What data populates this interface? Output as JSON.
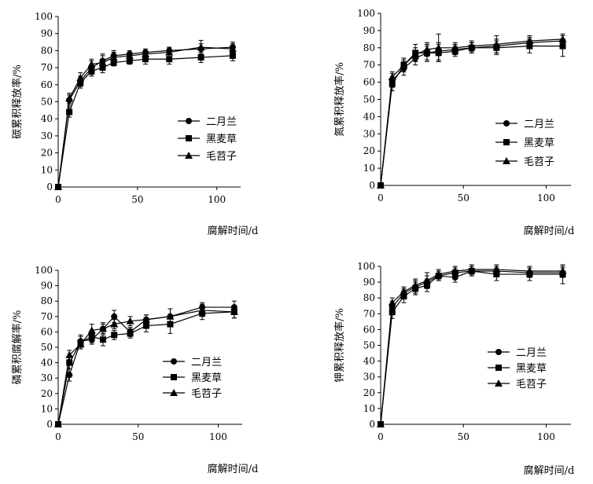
{
  "chart_data": [
    {
      "type": "line",
      "xlabel": "腐解时间/d",
      "ylabel": "碳累积释放率/%",
      "xlim": [
        0,
        115
      ],
      "ylim": [
        0,
        100
      ],
      "xticks": [
        0,
        50,
        100
      ],
      "yticks": [
        0,
        10,
        20,
        30,
        40,
        50,
        60,
        70,
        80,
        90,
        100
      ],
      "legend_position": "center-right",
      "error_bars": true,
      "grid": false,
      "series": [
        {
          "name": "二月兰",
          "marker": "circle",
          "x": [
            0,
            7,
            14,
            21,
            28,
            35,
            45,
            55,
            70,
            90,
            110
          ],
          "y": [
            0,
            51,
            62,
            70,
            74,
            77,
            78,
            79,
            80,
            81,
            82
          ],
          "err": [
            0,
            3,
            3,
            4,
            4,
            3,
            2,
            2,
            2,
            3,
            3
          ]
        },
        {
          "name": "黑麦草",
          "marker": "square",
          "x": [
            0,
            7,
            14,
            21,
            28,
            35,
            45,
            55,
            70,
            90,
            110
          ],
          "y": [
            0,
            44,
            61,
            68,
            70,
            73,
            74,
            75,
            75,
            76,
            77
          ],
          "err": [
            0,
            3,
            3,
            3,
            3,
            2,
            2,
            3,
            3,
            3,
            3
          ]
        },
        {
          "name": "毛苕子",
          "marker": "triangle",
          "x": [
            0,
            7,
            14,
            21,
            28,
            35,
            45,
            55,
            70,
            90,
            110
          ],
          "y": [
            0,
            52,
            64,
            72,
            73,
            76,
            77,
            78,
            79,
            82,
            81
          ],
          "err": [
            0,
            3,
            3,
            3,
            4,
            3,
            2,
            2,
            3,
            4,
            3
          ]
        }
      ]
    },
    {
      "type": "line",
      "xlabel": "腐解时间/d",
      "ylabel": "氮累积释放率/%",
      "xlim": [
        0,
        115
      ],
      "ylim": [
        0,
        100
      ],
      "xticks": [
        0,
        50,
        100
      ],
      "yticks": [
        0,
        10,
        20,
        30,
        40,
        50,
        60,
        70,
        80,
        90,
        100
      ],
      "legend_position": "center-right",
      "error_bars": true,
      "grid": false,
      "series": [
        {
          "name": "二月兰",
          "marker": "circle",
          "x": [
            0,
            7,
            14,
            21,
            28,
            35,
            45,
            55,
            70,
            90,
            110
          ],
          "y": [
            0,
            61,
            68,
            74,
            77,
            78,
            79,
            80,
            81,
            83,
            84
          ],
          "err": [
            0,
            4,
            4,
            4,
            4,
            5,
            3,
            3,
            4,
            3,
            3
          ]
        },
        {
          "name": "黑麦草",
          "marker": "square",
          "x": [
            0,
            7,
            14,
            21,
            28,
            35,
            45,
            55,
            70,
            90,
            110
          ],
          "y": [
            0,
            59,
            70,
            77,
            77,
            77,
            78,
            80,
            80,
            81,
            81
          ],
          "err": [
            0,
            4,
            4,
            5,
            5,
            5,
            3,
            3,
            4,
            4,
            6
          ]
        },
        {
          "name": "毛苕子",
          "marker": "triangle",
          "x": [
            0,
            7,
            14,
            21,
            28,
            35,
            45,
            55,
            70,
            90,
            110
          ],
          "y": [
            0,
            63,
            70,
            76,
            79,
            80,
            80,
            81,
            82,
            84,
            85
          ],
          "err": [
            0,
            3,
            3,
            4,
            4,
            8,
            3,
            3,
            5,
            3,
            3
          ]
        }
      ]
    },
    {
      "type": "line",
      "xlabel": "腐解时间/d",
      "ylabel": "磷累积腐解率/%",
      "xlim": [
        0,
        115
      ],
      "ylim": [
        0,
        100
      ],
      "xticks": [
        0,
        50,
        100
      ],
      "yticks": [
        0,
        10,
        20,
        30,
        40,
        50,
        60,
        70,
        80,
        90,
        100
      ],
      "legend_position": "center-right",
      "error_bars": true,
      "grid": false,
      "series": [
        {
          "name": "二月兰",
          "marker": "circle",
          "x": [
            0,
            7,
            14,
            21,
            28,
            35,
            45,
            55,
            70,
            90,
            110
          ],
          "y": [
            0,
            32,
            54,
            55,
            62,
            70,
            60,
            68,
            70,
            76,
            76
          ],
          "err": [
            0,
            4,
            4,
            3,
            3,
            4,
            3,
            3,
            5,
            3,
            4
          ]
        },
        {
          "name": "黑麦草",
          "marker": "square",
          "x": [
            0,
            7,
            14,
            21,
            28,
            35,
            45,
            55,
            70,
            90,
            110
          ],
          "y": [
            0,
            40,
            53,
            57,
            55,
            58,
            59,
            64,
            65,
            72,
            73
          ],
          "err": [
            0,
            4,
            4,
            4,
            4,
            3,
            3,
            4,
            6,
            4,
            4
          ]
        },
        {
          "name": "毛苕子",
          "marker": "triangle",
          "x": [
            0,
            7,
            14,
            21,
            28,
            35,
            45,
            55,
            70,
            90,
            110
          ],
          "y": [
            0,
            45,
            52,
            61,
            62,
            65,
            67,
            68,
            70,
            74,
            73
          ],
          "err": [
            0,
            3,
            3,
            4,
            4,
            3,
            3,
            3,
            5,
            4,
            4
          ]
        }
      ]
    },
    {
      "type": "line",
      "xlabel": "腐解时间/d",
      "ylabel": "钾累积释放率/%",
      "xlim": [
        0,
        115
      ],
      "ylim": [
        0,
        100
      ],
      "xticks": [
        0,
        50,
        100
      ],
      "yticks": [
        0,
        10,
        20,
        30,
        40,
        50,
        60,
        70,
        80,
        90,
        100
      ],
      "legend_position": "bottom-right",
      "error_bars": true,
      "grid": false,
      "series": [
        {
          "name": "二月兰",
          "marker": "circle",
          "x": [
            0,
            7,
            14,
            21,
            28,
            35,
            45,
            55,
            70,
            90,
            110
          ],
          "y": [
            0,
            74,
            83,
            87,
            90,
            94,
            93,
            97,
            97,
            96,
            96
          ],
          "err": [
            0,
            4,
            3,
            4,
            4,
            3,
            3,
            3,
            3,
            3,
            3
          ]
        },
        {
          "name": "黑麦草",
          "marker": "square",
          "x": [
            0,
            7,
            14,
            21,
            28,
            35,
            45,
            55,
            70,
            90,
            110
          ],
          "y": [
            0,
            71,
            81,
            86,
            88,
            94,
            96,
            97,
            95,
            95,
            95
          ],
          "err": [
            0,
            4,
            4,
            4,
            4,
            3,
            3,
            3,
            4,
            4,
            6
          ]
        },
        {
          "name": "毛苕子",
          "marker": "triangle",
          "x": [
            0,
            7,
            14,
            21,
            28,
            35,
            45,
            55,
            70,
            90,
            110
          ],
          "y": [
            0,
            77,
            84,
            88,
            91,
            95,
            97,
            98,
            98,
            97,
            97
          ],
          "err": [
            0,
            3,
            3,
            4,
            5,
            3,
            3,
            3,
            3,
            3,
            3
          ]
        }
      ]
    }
  ]
}
